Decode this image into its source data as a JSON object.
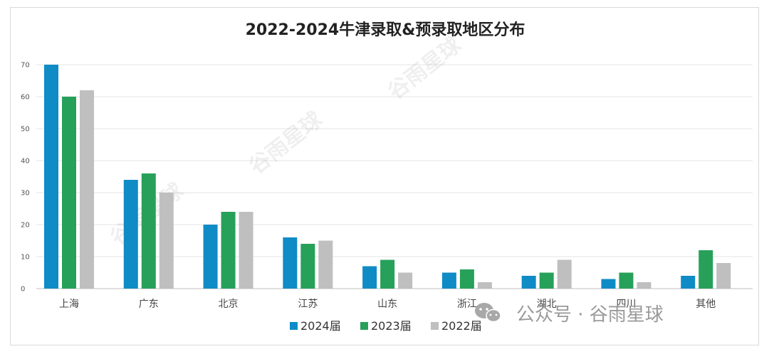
{
  "chart_data": {
    "type": "bar",
    "title": "2022-2024牛津录取&预录取地区分布",
    "categories": [
      "上海",
      "广东",
      "北京",
      "江苏",
      "山东",
      "浙江",
      "湖北",
      "四川",
      "其他"
    ],
    "series": [
      {
        "name": "2024届",
        "color": "#0f8bc6",
        "values": [
          70,
          34,
          20,
          16,
          7,
          5,
          4,
          3,
          4
        ]
      },
      {
        "name": "2023届",
        "color": "#27a05a",
        "values": [
          60,
          36,
          24,
          14,
          9,
          6,
          5,
          5,
          12
        ]
      },
      {
        "name": "2022届",
        "color": "#bfbfbf",
        "values": [
          62,
          30,
          24,
          15,
          5,
          2,
          9,
          2,
          8
        ]
      }
    ],
    "ylim": [
      0,
      70
    ],
    "yticks": [
      0,
      10,
      20,
      30,
      40,
      50,
      60,
      70
    ],
    "grid": true,
    "legend_position": "bottom"
  },
  "watermarks": {
    "diagonal": [
      "谷雨星球",
      "谷雨星球",
      "谷雨星球"
    ],
    "footer_icon": "wechat-icon",
    "footer": "公众号 · 谷雨星球"
  }
}
